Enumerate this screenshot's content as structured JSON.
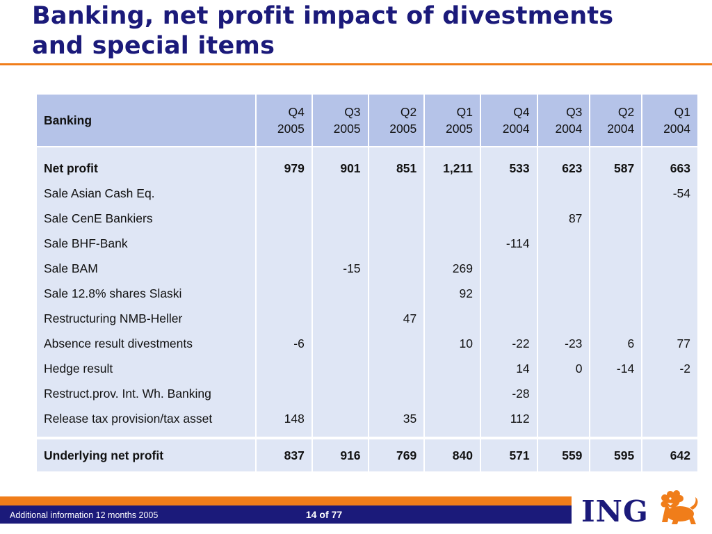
{
  "slide": {
    "title_line1": "Banking, net profit impact of divestments",
    "title_line2": "and special items"
  },
  "table": {
    "header_label": "Banking",
    "columns": [
      {
        "q": "Q4",
        "year": "2005"
      },
      {
        "q": "Q3",
        "year": "2005"
      },
      {
        "q": "Q2",
        "year": "2005"
      },
      {
        "q": "Q1",
        "year": "2005"
      },
      {
        "q": "Q4",
        "year": "2004"
      },
      {
        "q": "Q3",
        "year": "2004"
      },
      {
        "q": "Q2",
        "year": "2004"
      },
      {
        "q": "Q1",
        "year": "2004"
      }
    ],
    "rows": [
      {
        "label": "Net profit",
        "values": [
          "979",
          "901",
          "851",
          "1,211",
          "533",
          "623",
          "587",
          "663"
        ]
      },
      {
        "label": "Sale Asian Cash Eq.",
        "values": [
          "",
          "",
          "",
          "",
          "",
          "",
          "",
          "-54"
        ]
      },
      {
        "label": "Sale CenE Bankiers",
        "values": [
          "",
          "",
          "",
          "",
          "",
          "87",
          "",
          ""
        ]
      },
      {
        "label": "Sale BHF-Bank",
        "values": [
          "",
          "",
          "",
          "",
          "-114",
          "",
          "",
          ""
        ]
      },
      {
        "label": "Sale BAM",
        "values": [
          "",
          "-15",
          "",
          "269",
          "",
          "",
          "",
          ""
        ]
      },
      {
        "label": "Sale 12.8% shares Slaski",
        "values": [
          "",
          "",
          "",
          "92",
          "",
          "",
          "",
          ""
        ]
      },
      {
        "label": "Restructuring NMB-Heller",
        "values": [
          "",
          "",
          "47",
          "",
          "",
          "",
          "",
          ""
        ]
      },
      {
        "label": "Absence result divestments",
        "values": [
          "-6",
          "",
          "",
          "10",
          "-22",
          "-23",
          "6",
          "77"
        ]
      },
      {
        "label": "Hedge result",
        "values": [
          "",
          "",
          "",
          "",
          "14",
          "0",
          "-14",
          "-2"
        ]
      },
      {
        "label": "Restruct.prov. Int. Wh. Banking",
        "values": [
          "",
          "",
          "",
          "",
          "-28",
          "",
          "",
          ""
        ]
      },
      {
        "label": "Release tax provision/tax asset",
        "values": [
          "148",
          "",
          "35",
          "",
          "112",
          "",
          "",
          ""
        ]
      }
    ],
    "total": {
      "label": "Underlying net profit",
      "values": [
        "837",
        "916",
        "769",
        "840",
        "571",
        "559",
        "595",
        "642"
      ]
    }
  },
  "footer": {
    "left_text": "Additional information 12 months 2005",
    "page_current": "14",
    "page_of": "of",
    "page_total": "77",
    "logo_text": "ING"
  },
  "colors": {
    "title": "#1b1a7a",
    "accent_orange": "#f07d1a",
    "header_fill": "#b5c3e8",
    "body_fill": "#dfe6f5",
    "footer_navy": "#1b1a7a"
  }
}
